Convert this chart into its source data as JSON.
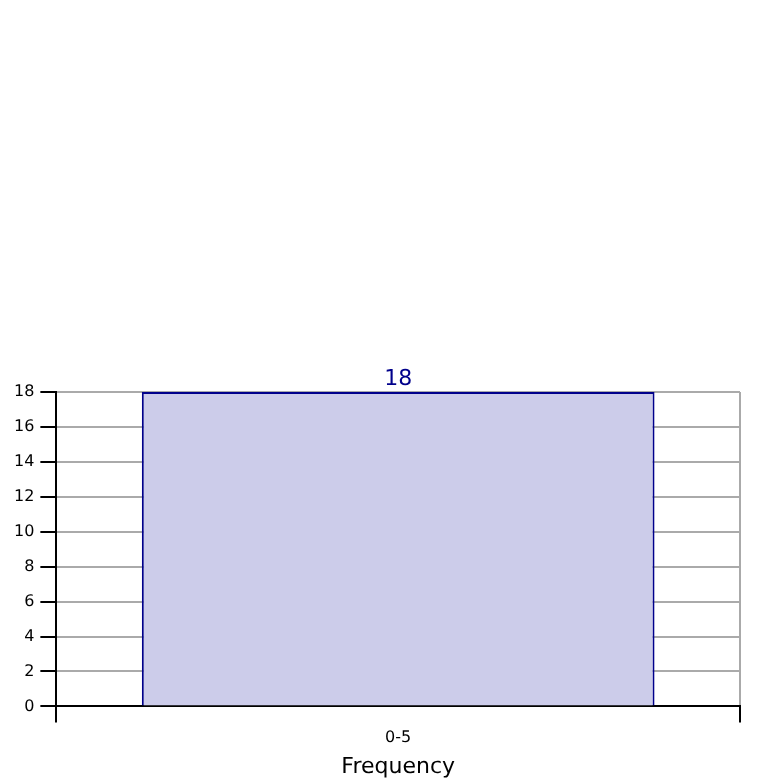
{
  "chart_data": {
    "type": "bar",
    "xlabel": "Frequency",
    "categories": [
      "0-5"
    ],
    "series": [
      {
        "color": "#ccccea",
        "values": [
          18
        ]
      }
    ],
    "ylim": [
      0,
      18
    ],
    "yticks": [
      0,
      2,
      4,
      6,
      8,
      10,
      12,
      14,
      16,
      18
    ],
    "grid": true,
    "data_labels": true,
    "legend": false
  }
}
